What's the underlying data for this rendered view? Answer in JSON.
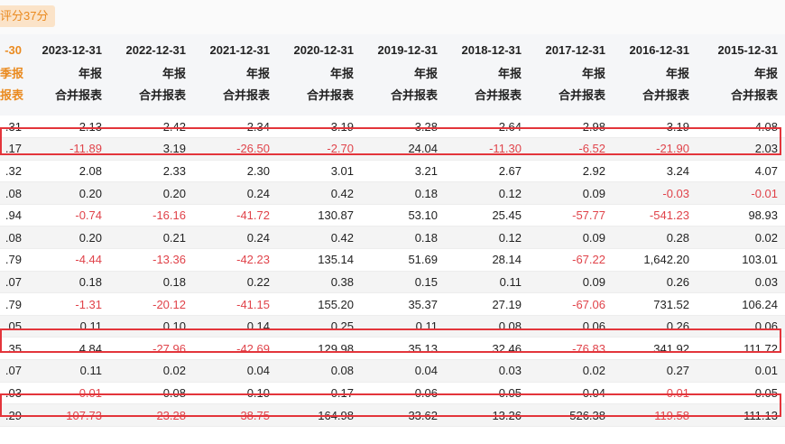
{
  "score_badge": "评分37分",
  "columns": [
    {
      "date": "-30",
      "period": "季报",
      "type": "报表"
    },
    {
      "date": "2023-12-31",
      "period": "年报",
      "type": "合并报表"
    },
    {
      "date": "2022-12-31",
      "period": "年报",
      "type": "合并报表"
    },
    {
      "date": "2021-12-31",
      "period": "年报",
      "type": "合并报表"
    },
    {
      "date": "2020-12-31",
      "period": "年报",
      "type": "合并报表"
    },
    {
      "date": "2019-12-31",
      "period": "年报",
      "type": "合并报表"
    },
    {
      "date": "2018-12-31",
      "period": "年报",
      "type": "合并报表"
    },
    {
      "date": "2017-12-31",
      "period": "年报",
      "type": "合并报表"
    },
    {
      "date": "2016-12-31",
      "period": "年报",
      "type": "合并报表"
    },
    {
      "date": "2015-12-31",
      "period": "年报",
      "type": "合并报表"
    }
  ],
  "rows": [
    [
      ".31",
      "2.13",
      "2.42",
      "2.34",
      "3.19",
      "3.28",
      "2.64",
      "2.98",
      "3.19",
      "4.08"
    ],
    [
      ".17",
      "-11.89",
      "3.19",
      "-26.50",
      "-2.70",
      "24.04",
      "-11.30",
      "-6.52",
      "-21.90",
      "2.03"
    ],
    [
      ".32",
      "2.08",
      "2.33",
      "2.30",
      "3.01",
      "3.21",
      "2.67",
      "2.92",
      "3.24",
      "4.07"
    ],
    [
      ".08",
      "0.20",
      "0.20",
      "0.24",
      "0.42",
      "0.18",
      "0.12",
      "0.09",
      "-0.03",
      "-0.01"
    ],
    [
      ".94",
      "-0.74",
      "-16.16",
      "-41.72",
      "130.87",
      "53.10",
      "25.45",
      "-57.77",
      "-541.23",
      "98.93"
    ],
    [
      ".08",
      "0.20",
      "0.21",
      "0.24",
      "0.42",
      "0.18",
      "0.12",
      "0.09",
      "0.28",
      "0.02"
    ],
    [
      ".79",
      "-4.44",
      "-13.36",
      "-42.23",
      "135.14",
      "51.69",
      "28.14",
      "-67.22",
      "1,642.20",
      "103.01"
    ],
    [
      ".07",
      "0.18",
      "0.18",
      "0.22",
      "0.38",
      "0.15",
      "0.11",
      "0.09",
      "0.26",
      "0.03"
    ],
    [
      ".79",
      "-1.31",
      "-20.12",
      "-41.15",
      "155.20",
      "35.37",
      "27.19",
      "-67.06",
      "731.52",
      "106.24"
    ],
    [
      ".05",
      "0.11",
      "0.10",
      "0.14",
      "0.25",
      "0.11",
      "0.08",
      "0.06",
      "0.26",
      "0.06"
    ],
    [
      ".35",
      "4.84",
      "-27.96",
      "-42.69",
      "129.98",
      "35.13",
      "32.46",
      "-76.83",
      "341.92",
      "111.72"
    ],
    [
      ".07",
      "0.11",
      "0.02",
      "0.04",
      "0.08",
      "0.04",
      "0.03",
      "0.02",
      "0.27",
      "0.01"
    ],
    [
      ".03",
      "-0.01",
      "0.08",
      "0.10",
      "0.17",
      "0.06",
      "0.05",
      "0.04",
      "-0.01",
      "0.05"
    ],
    [
      ".29",
      "-107.73",
      "-23.28",
      "-38.75",
      "164.98",
      "33.62",
      "13.26",
      "526.38",
      "-119.58",
      "111.13"
    ]
  ],
  "negative_color": "#e0434a",
  "accent_color": "#ea8a1f",
  "highlight_color": "#e3353b"
}
